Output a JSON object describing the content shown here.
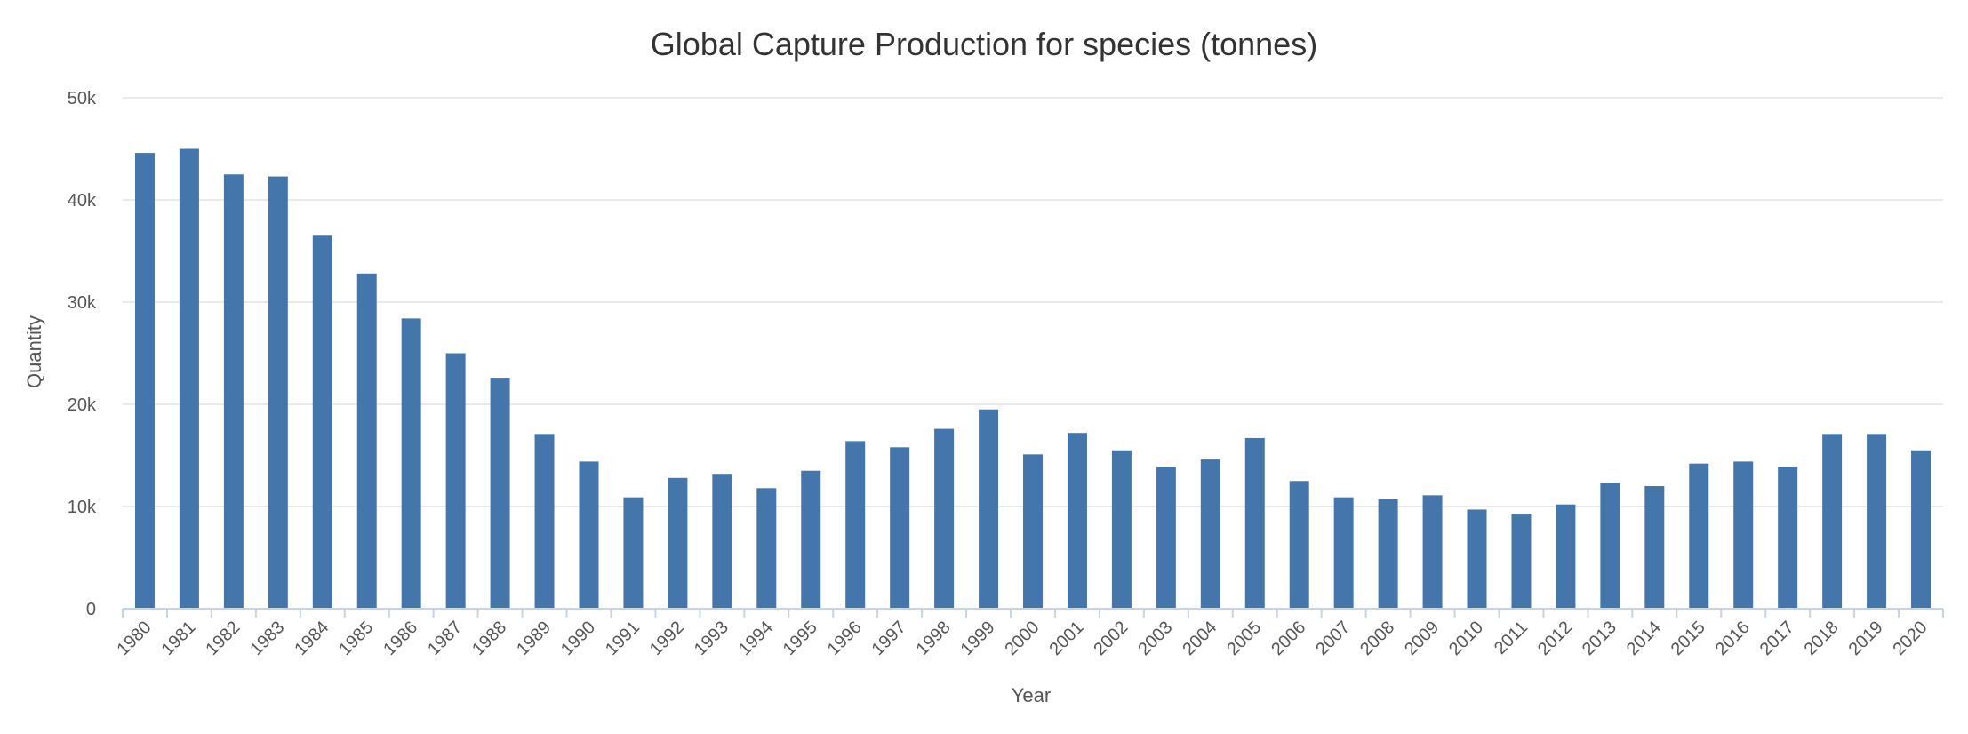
{
  "chart_data": {
    "type": "bar",
    "title": "Global Capture Production for species (tonnes)",
    "xlabel": "Year",
    "ylabel": "Quantity",
    "ylim": [
      0,
      50000
    ],
    "yticks": [
      0,
      10000,
      20000,
      30000,
      40000,
      50000
    ],
    "ytick_labels": [
      "0",
      "10k",
      "20k",
      "30k",
      "40k",
      "50k"
    ],
    "grid": true,
    "legend": "none",
    "bar_color": "#4475ab",
    "categories": [
      "1980",
      "1981",
      "1982",
      "1983",
      "1984",
      "1985",
      "1986",
      "1987",
      "1988",
      "1989",
      "1990",
      "1991",
      "1992",
      "1993",
      "1994",
      "1995",
      "1996",
      "1997",
      "1998",
      "1999",
      "2000",
      "2001",
      "2002",
      "2003",
      "2004",
      "2005",
      "2006",
      "2007",
      "2008",
      "2009",
      "2010",
      "2011",
      "2012",
      "2013",
      "2014",
      "2015",
      "2016",
      "2017",
      "2018",
      "2019",
      "2020"
    ],
    "values": [
      44600,
      45000,
      42500,
      42300,
      36500,
      32800,
      28400,
      25000,
      22600,
      17100,
      14400,
      10900,
      12800,
      13200,
      11800,
      13500,
      16400,
      15800,
      17600,
      19500,
      15100,
      17200,
      15500,
      13900,
      14600,
      16700,
      12500,
      10900,
      10700,
      11100,
      9700,
      9300,
      10200,
      12300,
      12000,
      14200,
      14400,
      13900,
      17100,
      17100,
      15500
    ]
  }
}
